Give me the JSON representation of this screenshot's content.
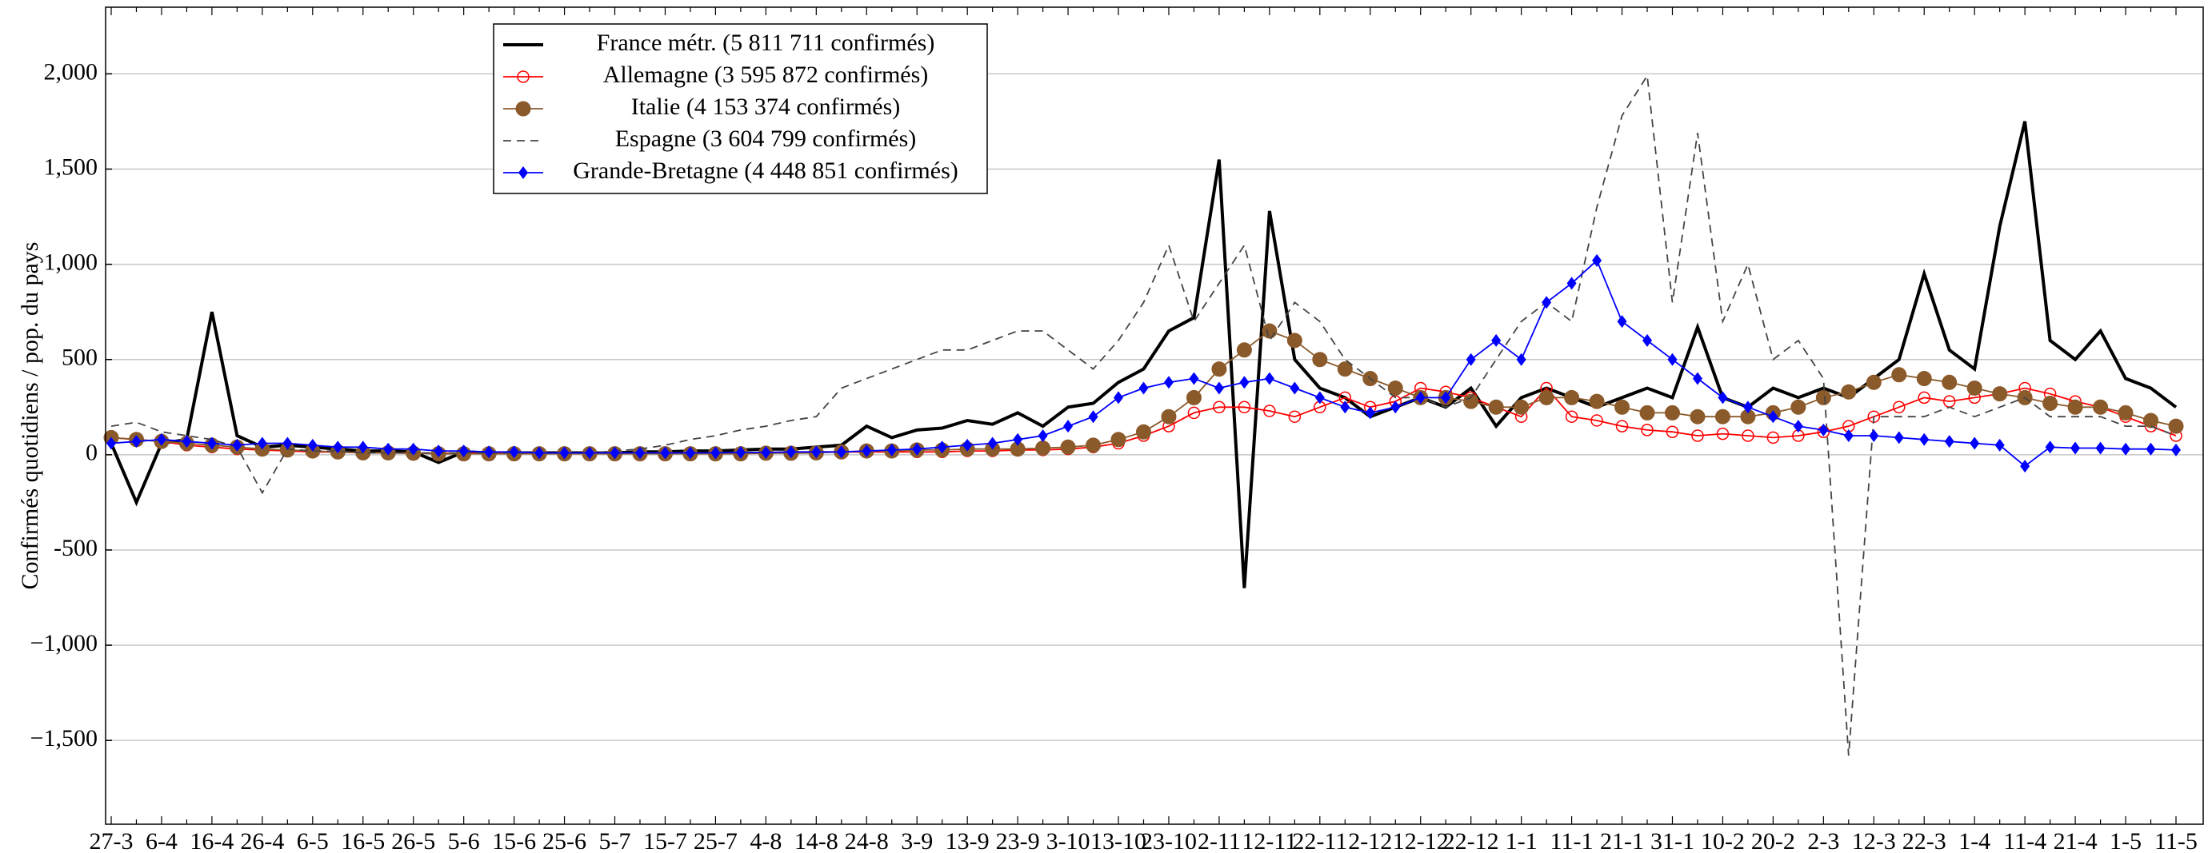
{
  "chart_data": {
    "type": "line",
    "y_label": "Confirmés quotidiens / pop. du pays",
    "categories": [
      "27-3",
      null,
      "6-4",
      null,
      "16-4",
      null,
      "26-4",
      null,
      "6-5",
      null,
      "16-5",
      null,
      "26-5",
      null,
      "5-6",
      null,
      "15-6",
      null,
      "25-6",
      null,
      "5-7",
      null,
      "15-7",
      null,
      "25-7",
      null,
      "4-8",
      null,
      "14-8",
      null,
      "24-8",
      null,
      "3-9",
      null,
      "13-9",
      null,
      "23-9",
      null,
      "3-10",
      null,
      "13-10",
      null,
      "23-10",
      null,
      "2-11",
      null,
      "12-11",
      null,
      "22-11",
      null,
      "2-12",
      null,
      "12-12",
      null,
      "22-12",
      null,
      "1-1",
      null,
      "11-1",
      null,
      "21-1",
      null,
      "31-1",
      null,
      "10-2",
      null,
      "20-2",
      null,
      "2-3",
      null,
      "12-3",
      null,
      "22-3",
      null,
      "1-4",
      null,
      "11-4",
      null,
      "21-4",
      null,
      "1-5",
      null,
      "11-5"
    ],
    "ylim": [
      -1940,
      2350
    ],
    "yticks": [
      {
        "value": -1500,
        "label": "−1,500"
      },
      {
        "value": -1000,
        "label": "−1,000"
      },
      -500,
      0,
      500,
      {
        "value": 1000,
        "label": "1,000"
      },
      {
        "value": 1500,
        "label": "1,500"
      },
      {
        "value": 2000,
        "label": "2,000"
      }
    ],
    "grid": true,
    "legend": "top-left",
    "series": [
      {
        "name": "France métr. (5 811 711 confirmés)",
        "color": "#000000",
        "style": "solid",
        "marker": "none",
        "values": [
          60,
          -250,
          60,
          80,
          750,
          100,
          40,
          50,
          40,
          30,
          20,
          20,
          15,
          -40,
          15,
          10,
          10,
          10,
          10,
          10,
          10,
          15,
          15,
          20,
          20,
          25,
          30,
          30,
          40,
          50,
          150,
          90,
          130,
          140,
          180,
          160,
          220,
          150,
          250,
          270,
          380,
          450,
          650,
          720,
          1550,
          -700,
          1280,
          500,
          350,
          300,
          200,
          250,
          300,
          250,
          350,
          150,
          300,
          350,
          300,
          250,
          300,
          350,
          300,
          670,
          300,
          250,
          350,
          300,
          350,
          300,
          400,
          500,
          950,
          550,
          450,
          1200,
          1750,
          600,
          500,
          650,
          400,
          350,
          250
        ]
      },
      {
        "name": "Allemagne (3 595 872 confirmés)",
        "color": "#ff0000",
        "style": "solid",
        "marker": "open-circle",
        "values": [
          90,
          80,
          70,
          50,
          40,
          30,
          25,
          20,
          15,
          15,
          10,
          10,
          8,
          8,
          8,
          8,
          8,
          8,
          8,
          8,
          8,
          8,
          10,
          10,
          10,
          12,
          12,
          15,
          15,
          15,
          15,
          15,
          15,
          15,
          20,
          20,
          25,
          25,
          30,
          40,
          60,
          100,
          150,
          220,
          250,
          250,
          230,
          200,
          250,
          300,
          250,
          280,
          350,
          330,
          300,
          250,
          200,
          350,
          200,
          180,
          150,
          130,
          120,
          100,
          110,
          100,
          90,
          100,
          120,
          150,
          200,
          250,
          300,
          280,
          300,
          320,
          350,
          320,
          280,
          250,
          200,
          150,
          100
        ]
      },
      {
        "name": "Italie (4 153 374 confirmés)",
        "color": "#8b5a2b",
        "style": "solid",
        "marker": "filled-circle",
        "values": [
          90,
          80,
          70,
          60,
          50,
          40,
          30,
          25,
          20,
          15,
          10,
          10,
          8,
          5,
          5,
          5,
          5,
          5,
          5,
          5,
          5,
          5,
          5,
          5,
          5,
          5,
          8,
          8,
          10,
          15,
          20,
          20,
          25,
          25,
          30,
          30,
          30,
          35,
          40,
          50,
          80,
          120,
          200,
          300,
          450,
          550,
          650,
          600,
          500,
          450,
          400,
          350,
          300,
          300,
          280,
          250,
          250,
          300,
          300,
          280,
          250,
          220,
          220,
          200,
          200,
          200,
          220,
          250,
          300,
          330,
          380,
          420,
          400,
          380,
          350,
          320,
          300,
          270,
          250,
          250,
          220,
          180,
          150
        ]
      },
      {
        "name": "Espagne (3 604 799 confirmés)",
        "color": "#444444",
        "style": "dashed",
        "marker": "none",
        "values": [
          150,
          170,
          120,
          100,
          80,
          40,
          -200,
          30,
          20,
          20,
          10,
          10,
          10,
          10,
          10,
          10,
          10,
          10,
          10,
          10,
          20,
          30,
          50,
          80,
          100,
          130,
          150,
          180,
          200,
          350,
          400,
          450,
          500,
          550,
          550,
          600,
          650,
          650,
          550,
          450,
          600,
          800,
          1100,
          700,
          900,
          1100,
          600,
          800,
          700,
          500,
          400,
          300,
          300,
          250,
          300,
          500,
          700,
          800,
          700,
          1300,
          1780,
          1990,
          800,
          1690,
          700,
          1000,
          500,
          600,
          400,
          -1580,
          200,
          200,
          200,
          250,
          200,
          250,
          300,
          200,
          200,
          200,
          150,
          150,
          100
        ]
      },
      {
        "name": "Grande-Bretagne (4 448 851 confirmés)",
        "color": "#0000ff",
        "style": "solid",
        "marker": "diamond",
        "values": [
          60,
          70,
          80,
          70,
          60,
          50,
          60,
          60,
          50,
          40,
          40,
          30,
          30,
          20,
          20,
          15,
          15,
          10,
          10,
          10,
          10,
          10,
          10,
          10,
          10,
          12,
          12,
          15,
          15,
          15,
          20,
          25,
          30,
          40,
          50,
          60,
          80,
          100,
          150,
          200,
          300,
          350,
          380,
          400,
          350,
          380,
          400,
          350,
          300,
          250,
          220,
          250,
          300,
          300,
          500,
          600,
          500,
          800,
          900,
          1020,
          700,
          600,
          500,
          400,
          300,
          250,
          200,
          150,
          130,
          100,
          100,
          90,
          80,
          70,
          60,
          50,
          -60,
          40,
          35,
          35,
          30,
          30,
          25
        ]
      }
    ]
  }
}
